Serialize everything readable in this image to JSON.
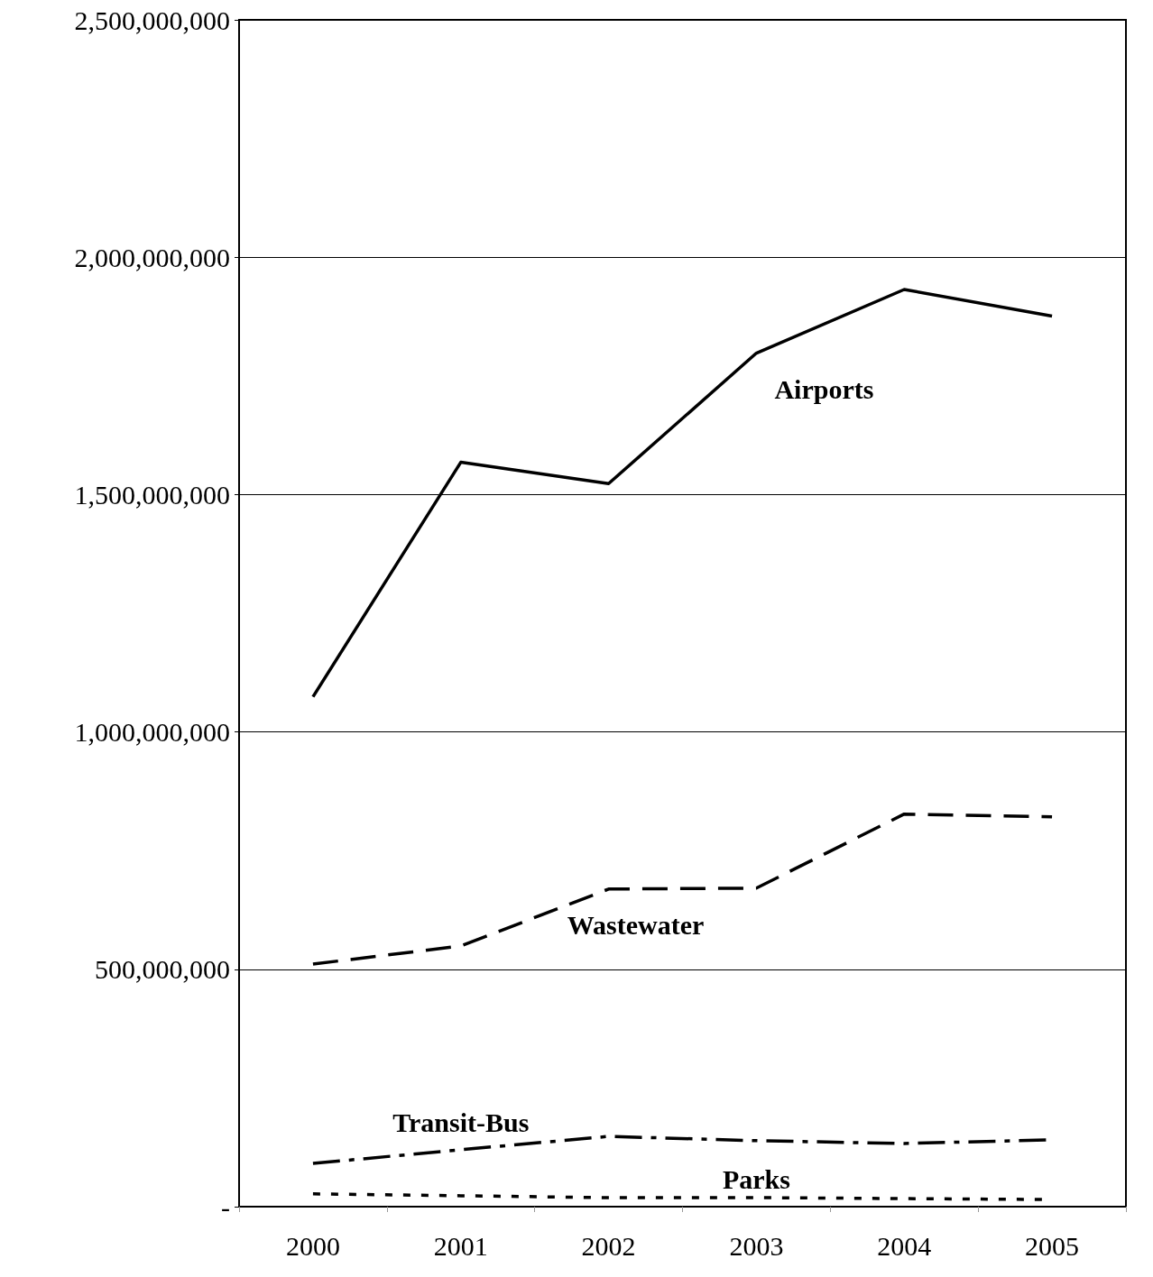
{
  "chart_data": {
    "type": "line",
    "categories": [
      "2000",
      "2001",
      "2002",
      "2003",
      "2004",
      "2005"
    ],
    "series": [
      {
        "name": "Airports",
        "color": "#000000",
        "line_style": "solid",
        "values": [
          1074000000,
          1568000000,
          1523000000,
          1798000000,
          1932000000,
          1876000000
        ]
      },
      {
        "name": "Wastewater",
        "color": "#000000",
        "line_style": "dashed",
        "values": [
          511000000,
          549000000,
          669000000,
          671000000,
          827000000,
          821000000
        ]
      },
      {
        "name": "Transit-Bus",
        "color": "#000000",
        "line_style": "dashed",
        "values": [
          91000000,
          120000000,
          148000000,
          139000000,
          133000000,
          141000000
        ]
      },
      {
        "name": "Parks",
        "color": "#000000",
        "line_style": "dotted",
        "values": [
          27000000,
          23000000,
          19000000,
          19000000,
          17000000,
          15000000
        ]
      }
    ],
    "ylim": [
      0,
      2500000000
    ],
    "yticks": [
      {
        "value": 0,
        "label": "-"
      },
      {
        "value": 500000000,
        "label": "500,000,000"
      },
      {
        "value": 1000000000,
        "label": "1,000,000,000"
      },
      {
        "value": 1500000000,
        "label": "1,500,000,000"
      },
      {
        "value": 2000000000,
        "label": "2,000,000,000"
      },
      {
        "value": 2500000000,
        "label": "2,500,000,000"
      }
    ],
    "grid": "y",
    "legend": false,
    "marker": "none"
  }
}
